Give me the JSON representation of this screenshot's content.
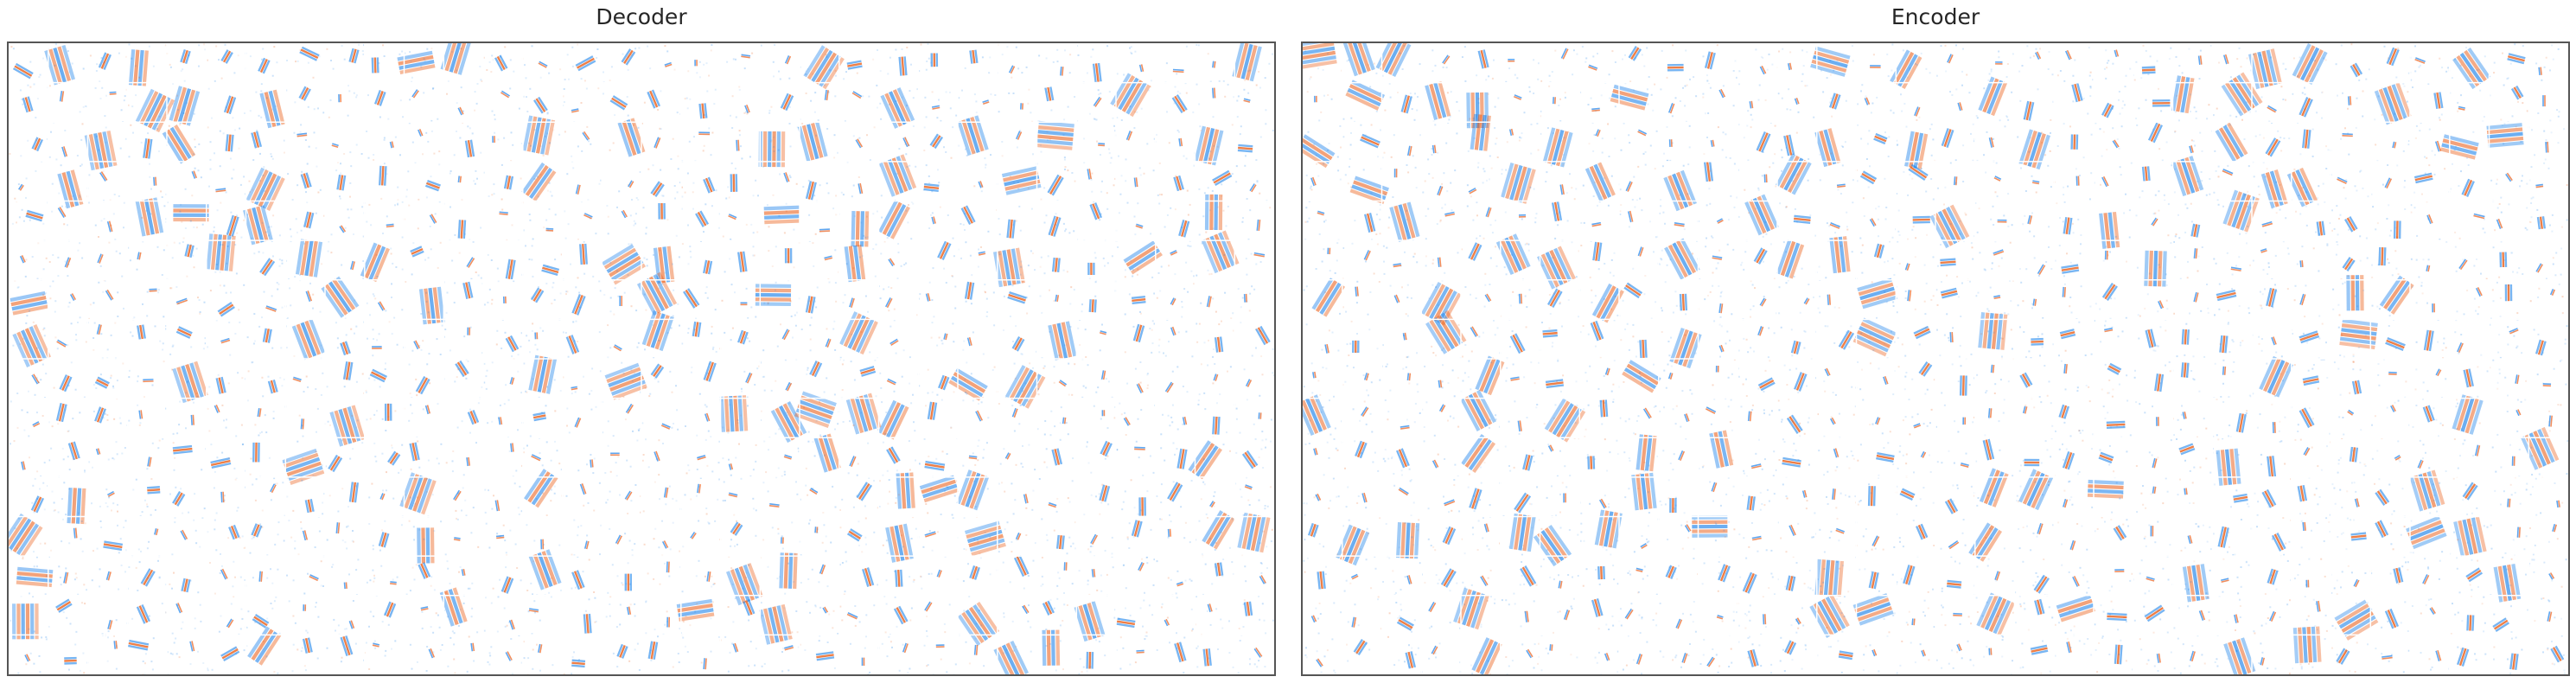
{
  "panels": [
    {
      "title": "Decoder",
      "seed": 7
    },
    {
      "title": "Encoder",
      "seed": 19
    }
  ],
  "grid": {
    "rows": 16,
    "cols": 32
  },
  "colors": {
    "positive": "#e8540a",
    "negative": "#0a78e8",
    "background": "#ffffff",
    "grid_line": "#ffffff"
  }
}
